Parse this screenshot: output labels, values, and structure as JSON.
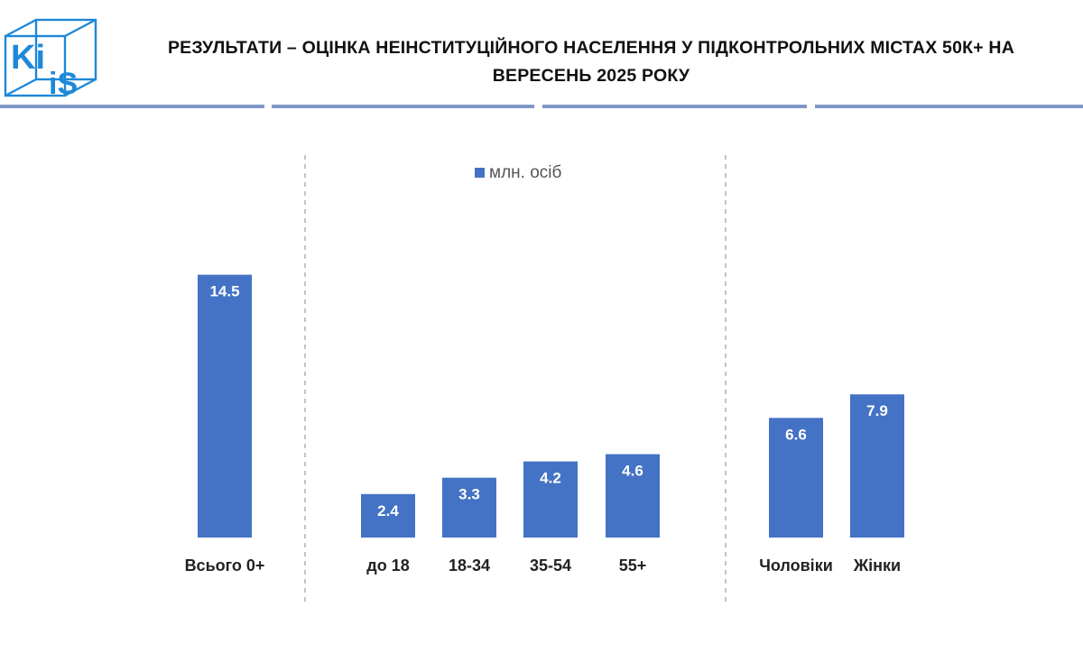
{
  "logo": {
    "text_top": "Ki",
    "text_bottom": "iS",
    "color": "#1e88d8"
  },
  "title": {
    "line1": "РЕЗУЛЬТАТИ – ОЦІНКА НЕІНСТИТУЦІЙНОГО НАСЕЛЕННЯ У ПІДКОНТРОЛЬНИХ МІСТАХ 50К+ НА",
    "line2": "ВЕРЕСЕНЬ 2025 РОКУ"
  },
  "colors": {
    "bar": "#4472c4",
    "rule": "#7f97c8",
    "divider": "#b0b0b0"
  },
  "chart_data": {
    "type": "bar",
    "legend": {
      "label": "млн. осіб",
      "position": "top-center"
    },
    "categories": [
      "Всього 0+",
      "до 18",
      "18-34",
      "35-54",
      "55+",
      "Чоловіки",
      "Жінки"
    ],
    "values": [
      14.5,
      2.4,
      3.3,
      4.2,
      4.6,
      6.6,
      7.9
    ],
    "labels": [
      "14.5",
      "2.4",
      "3.3",
      "4.2",
      "4.6",
      "6.6",
      "7.9"
    ],
    "groups": [
      {
        "categories": [
          "Всього 0+"
        ]
      },
      {
        "categories": [
          "до 18",
          "18-34",
          "35-54",
          "55+"
        ]
      },
      {
        "categories": [
          "Чоловіки",
          "Жінки"
        ]
      }
    ],
    "grid": false,
    "ylim": [
      0,
      21.0
    ]
  }
}
